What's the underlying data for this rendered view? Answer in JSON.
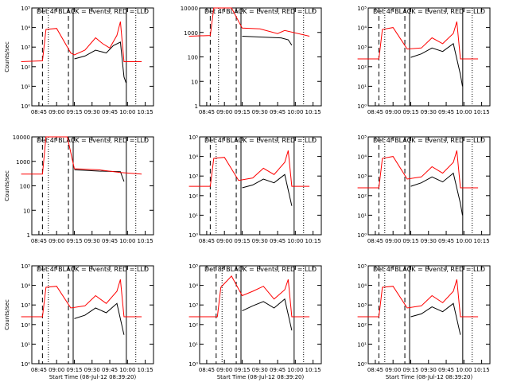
{
  "page": {
    "background": "#ffffff"
  },
  "style": {
    "events_color": "#000000",
    "lld_color": "#ff0000"
  },
  "chart_data": [
    {
      "type": "line",
      "title": "Det 4f BLACK = Events, RED = LLD",
      "ylabel": "Counts/sec",
      "xlabel": "",
      "yscale": "log",
      "ylim": [
        1,
        100000
      ],
      "yticks": [
        "10⁰",
        "10¹",
        "10²",
        "10³",
        "10⁴",
        "10⁵"
      ],
      "xticks": [
        "08:45",
        "09:00",
        "09:15",
        "09:30",
        "09:45",
        "10:00",
        "10:15"
      ],
      "markers": {
        "dashed": [
          "08:48",
          "09:10"
        ],
        "dotted": [
          "08:53",
          "10:07"
        ],
        "solid": [
          "09:14",
          "09:59"
        ]
      },
      "series": [
        {
          "color": "#000000",
          "values": [
            [
              9.25,
              250
            ],
            [
              9.4,
              350
            ],
            [
              9.55,
              700
            ],
            [
              9.7,
              500
            ],
            [
              9.8,
              1200
            ],
            [
              9.9,
              1800
            ],
            [
              9.95,
              30
            ],
            [
              9.98,
              15
            ]
          ]
        },
        {
          "color": "#ff0000",
          "values": [
            [
              8.5,
              180
            ],
            [
              8.8,
              200
            ],
            [
              8.85,
              8000
            ],
            [
              9.0,
              9000
            ],
            [
              9.2,
              500
            ],
            [
              9.25,
              400
            ],
            [
              9.4,
              700
            ],
            [
              9.55,
              3000
            ],
            [
              9.65,
              1500
            ],
            [
              9.75,
              900
            ],
            [
              9.85,
              4000
            ],
            [
              9.9,
              20000
            ],
            [
              9.95,
              180
            ],
            [
              10.2,
              180
            ]
          ]
        }
      ]
    },
    {
      "type": "line",
      "title": "Det 4f BLACK = Events, RED = LLD",
      "ylabel": "",
      "xlabel": "",
      "yscale": "log",
      "ylim": [
        1,
        10000
      ],
      "yticks": [
        "1",
        "10",
        "100",
        "1000",
        "10000"
      ],
      "xticks": [
        "08:45",
        "09:00",
        "09:15",
        "09:30",
        "09:45",
        "10:00",
        "10:15"
      ],
      "markers": {
        "dashed": [
          "08:48",
          "09:10"
        ],
        "dotted": [
          "08:55",
          "10:07"
        ],
        "solid": [
          "09:14",
          "09:59"
        ]
      },
      "series": [
        {
          "color": "#000000",
          "values": [
            [
              9.25,
              700
            ],
            [
              9.5,
              650
            ],
            [
              9.8,
              600
            ],
            [
              9.9,
              500
            ],
            [
              9.95,
              300
            ]
          ]
        },
        {
          "color": "#ff0000",
          "values": [
            [
              8.5,
              700
            ],
            [
              8.8,
              750
            ],
            [
              8.85,
              12000
            ],
            [
              9.1,
              12000
            ],
            [
              9.25,
              1500
            ],
            [
              9.5,
              1400
            ],
            [
              9.75,
              900
            ],
            [
              9.85,
              1200
            ],
            [
              10.2,
              700
            ]
          ]
        }
      ]
    },
    {
      "type": "line",
      "title": "Det 4f BLACK = Events, RED = LLD",
      "ylabel": "",
      "xlabel": "",
      "yscale": "log",
      "ylim": [
        1,
        100000
      ],
      "yticks": [
        "10⁰",
        "10¹",
        "10²",
        "10³",
        "10⁴",
        "10⁵"
      ],
      "xticks": [
        "08:45",
        "09:00",
        "09:15",
        "09:30",
        "09:45",
        "10:00",
        "10:15"
      ],
      "markers": {
        "dashed": [
          "08:48",
          "09:10"
        ],
        "dotted": [
          "08:53",
          "10:07"
        ],
        "solid": [
          "09:14",
          "09:59"
        ]
      },
      "series": [
        {
          "color": "#000000",
          "values": [
            [
              9.25,
              300
            ],
            [
              9.4,
              450
            ],
            [
              9.55,
              900
            ],
            [
              9.7,
              600
            ],
            [
              9.85,
              1500
            ],
            [
              9.95,
              40
            ],
            [
              9.98,
              10
            ]
          ]
        },
        {
          "color": "#ff0000",
          "values": [
            [
              8.5,
              250
            ],
            [
              8.8,
              250
            ],
            [
              8.85,
              8000
            ],
            [
              9.0,
              10000
            ],
            [
              9.2,
              800
            ],
            [
              9.4,
              900
            ],
            [
              9.55,
              3000
            ],
            [
              9.7,
              1500
            ],
            [
              9.85,
              5000
            ],
            [
              9.9,
              20000
            ],
            [
              9.95,
              250
            ],
            [
              10.2,
              250
            ]
          ]
        }
      ]
    },
    {
      "type": "line",
      "title": "Det 4f BLACK = Events, RED = LLD",
      "ylabel": "Counts/sec",
      "xlabel": "",
      "yscale": "log",
      "ylim": [
        1,
        10000
      ],
      "yticks": [
        "1",
        "10",
        "100",
        "1000",
        "10000"
      ],
      "xticks": [
        "08:45",
        "09:00",
        "09:15",
        "09:30",
        "09:45",
        "10:00",
        "10:15"
      ],
      "markers": {
        "dashed": [
          "08:48",
          "09:10"
        ],
        "dotted": [
          "08:53",
          "10:07"
        ],
        "solid": [
          "09:14",
          "09:59"
        ]
      },
      "series": [
        {
          "color": "#000000",
          "values": [
            [
              9.25,
              450
            ],
            [
              9.6,
              400
            ],
            [
              9.9,
              380
            ],
            [
              9.95,
              150
            ]
          ]
        },
        {
          "color": "#ff0000",
          "values": [
            [
              8.5,
              300
            ],
            [
              8.8,
              300
            ],
            [
              8.85,
              12000
            ],
            [
              9.15,
              12000
            ],
            [
              9.25,
              500
            ],
            [
              9.6,
              450
            ],
            [
              9.9,
              350
            ],
            [
              10.2,
              300
            ]
          ]
        }
      ]
    },
    {
      "type": "line",
      "title": "Det 4f BLACK = Events, RED = LLD",
      "ylabel": "",
      "xlabel": "",
      "yscale": "log",
      "ylim": [
        1,
        100000
      ],
      "yticks": [
        "10⁰",
        "10¹",
        "10²",
        "10³",
        "10⁴",
        "10⁵"
      ],
      "xticks": [
        "08:45",
        "09:00",
        "09:15",
        "09:30",
        "09:45",
        "10:00",
        "10:15"
      ],
      "markers": {
        "dashed": [
          "08:48",
          "09:10"
        ],
        "dotted": [
          "08:53",
          "10:07"
        ],
        "solid": [
          "09:14",
          "09:59"
        ]
      },
      "series": [
        {
          "color": "#000000",
          "values": [
            [
              9.25,
              250
            ],
            [
              9.4,
              350
            ],
            [
              9.55,
              700
            ],
            [
              9.7,
              450
            ],
            [
              9.85,
              1200
            ],
            [
              9.95,
              30
            ]
          ]
        },
        {
          "color": "#ff0000",
          "values": [
            [
              8.5,
              300
            ],
            [
              8.8,
              300
            ],
            [
              8.85,
              8000
            ],
            [
              9.0,
              9000
            ],
            [
              9.2,
              600
            ],
            [
              9.4,
              800
            ],
            [
              9.55,
              2500
            ],
            [
              9.7,
              1200
            ],
            [
              9.85,
              5000
            ],
            [
              9.9,
              20000
            ],
            [
              9.95,
              300
            ],
            [
              10.2,
              300
            ]
          ]
        }
      ]
    },
    {
      "type": "line",
      "title": "Det 4f BLACK = Events, RED = LLD",
      "ylabel": "",
      "xlabel": "",
      "yscale": "log",
      "ylim": [
        1,
        100000
      ],
      "yticks": [
        "10⁰",
        "10¹",
        "10²",
        "10³",
        "10⁴",
        "10⁵"
      ],
      "xticks": [
        "08:45",
        "09:00",
        "09:15",
        "09:30",
        "09:45",
        "10:00",
        "10:15"
      ],
      "markers": {
        "dashed": [
          "08:48",
          "09:10"
        ],
        "dotted": [
          "08:53",
          "10:07"
        ],
        "solid": [
          "09:14",
          "09:59"
        ]
      },
      "series": [
        {
          "color": "#000000",
          "values": [
            [
              9.25,
              300
            ],
            [
              9.4,
              450
            ],
            [
              9.55,
              900
            ],
            [
              9.7,
              500
            ],
            [
              9.85,
              1400
            ],
            [
              9.95,
              40
            ],
            [
              9.98,
              10
            ]
          ]
        },
        {
          "color": "#ff0000",
          "values": [
            [
              8.5,
              250
            ],
            [
              8.8,
              250
            ],
            [
              8.85,
              8000
            ],
            [
              9.0,
              10000
            ],
            [
              9.2,
              700
            ],
            [
              9.4,
              900
            ],
            [
              9.55,
              3000
            ],
            [
              9.7,
              1400
            ],
            [
              9.85,
              5000
            ],
            [
              9.9,
              20000
            ],
            [
              9.95,
              250
            ],
            [
              10.2,
              250
            ]
          ]
        }
      ]
    },
    {
      "type": "line",
      "title": "Det 4f BLACK = Events, RED = LLD",
      "ylabel": "Counts/sec",
      "xlabel": "Start Time (08-Jul-12 08:39:20)",
      "yscale": "log",
      "ylim": [
        1,
        100000
      ],
      "yticks": [
        "10⁰",
        "10¹",
        "10²",
        "10³",
        "10⁴",
        "10⁵"
      ],
      "xticks": [
        "08:45",
        "09:00",
        "09:15",
        "09:30",
        "09:45",
        "10:00",
        "10:15"
      ],
      "markers": {
        "dashed": [
          "08:48",
          "09:10"
        ],
        "dotted": [
          "08:53",
          "10:07"
        ],
        "solid": [
          "09:14",
          "09:59"
        ]
      },
      "series": [
        {
          "color": "#000000",
          "values": [
            [
              9.25,
              200
            ],
            [
              9.4,
              300
            ],
            [
              9.55,
              700
            ],
            [
              9.7,
              400
            ],
            [
              9.85,
              1200
            ],
            [
              9.95,
              30
            ]
          ]
        },
        {
          "color": "#ff0000",
          "values": [
            [
              8.5,
              250
            ],
            [
              8.8,
              250
            ],
            [
              8.85,
              8000
            ],
            [
              9.0,
              9000
            ],
            [
              9.2,
              700
            ],
            [
              9.4,
              900
            ],
            [
              9.55,
              3000
            ],
            [
              9.7,
              1200
            ],
            [
              9.85,
              5000
            ],
            [
              9.9,
              20000
            ],
            [
              9.95,
              250
            ],
            [
              10.2,
              250
            ]
          ]
        }
      ]
    },
    {
      "type": "line",
      "title": "Det 8f BLACK = Events, RED = LLD",
      "ylabel": "",
      "xlabel": "Start Time (08-Jul-12 08:39:20)",
      "yscale": "log",
      "ylim": [
        1,
        100000
      ],
      "yticks": [
        "10⁰",
        "10¹",
        "10²",
        "10³",
        "10⁴",
        "10⁵"
      ],
      "xticks": [
        "08:45",
        "09:00",
        "09:15",
        "09:30",
        "09:45",
        "10:00",
        "10:15"
      ],
      "markers": {
        "dashed": [
          "08:53",
          "09:10"
        ],
        "dotted": [
          "08:58",
          "10:07"
        ],
        "solid": [
          "09:14",
          "09:59"
        ]
      },
      "series": [
        {
          "color": "#000000",
          "values": [
            [
              9.25,
              500
            ],
            [
              9.4,
              900
            ],
            [
              9.55,
              1500
            ],
            [
              9.7,
              700
            ],
            [
              9.85,
              2000
            ],
            [
              9.95,
              50
            ]
          ]
        },
        {
          "color": "#ff0000",
          "values": [
            [
              8.5,
              250
            ],
            [
              8.9,
              250
            ],
            [
              8.95,
              8000
            ],
            [
              9.1,
              30000
            ],
            [
              9.25,
              3000
            ],
            [
              9.4,
              5000
            ],
            [
              9.55,
              9000
            ],
            [
              9.7,
              2000
            ],
            [
              9.85,
              6000
            ],
            [
              9.9,
              20000
            ],
            [
              9.95,
              250
            ],
            [
              10.2,
              250
            ]
          ]
        }
      ]
    },
    {
      "type": "line",
      "title": "Det 4f BLACK = Events, RED = LLD",
      "ylabel": "",
      "xlabel": "Start Time (08-Jul-12 08:39:20)",
      "yscale": "log",
      "ylim": [
        1,
        100000
      ],
      "yticks": [
        "10⁰",
        "10¹",
        "10²",
        "10³",
        "10⁴",
        "10⁵"
      ],
      "xticks": [
        "08:45",
        "09:00",
        "09:15",
        "09:30",
        "09:45",
        "10:00",
        "10:15"
      ],
      "markers": {
        "dashed": [
          "08:48",
          "09:10"
        ],
        "dotted": [
          "08:53",
          "10:07"
        ],
        "solid": [
          "09:14",
          "09:59"
        ]
      },
      "series": [
        {
          "color": "#000000",
          "values": [
            [
              9.25,
              250
            ],
            [
              9.4,
              350
            ],
            [
              9.55,
              800
            ],
            [
              9.7,
              450
            ],
            [
              9.85,
              1200
            ],
            [
              9.95,
              30
            ]
          ]
        },
        {
          "color": "#ff0000",
          "values": [
            [
              8.5,
              250
            ],
            [
              8.8,
              250
            ],
            [
              8.85,
              8000
            ],
            [
              9.0,
              9000
            ],
            [
              9.2,
              700
            ],
            [
              9.4,
              900
            ],
            [
              9.55,
              3000
            ],
            [
              9.7,
              1300
            ],
            [
              9.85,
              5000
            ],
            [
              9.9,
              20000
            ],
            [
              9.95,
              250
            ],
            [
              10.2,
              250
            ]
          ]
        }
      ]
    }
  ]
}
